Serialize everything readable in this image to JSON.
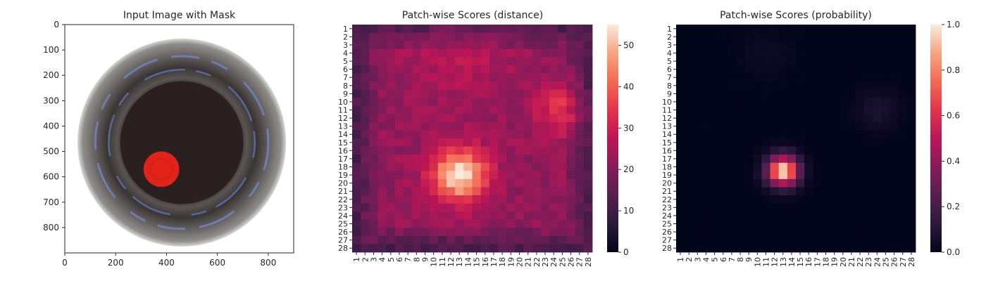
{
  "chart_data": [
    {
      "type": "image",
      "title": "Input Image with Mask",
      "x_ticks": [
        0,
        200,
        400,
        600,
        800
      ],
      "y_ticks": [
        0,
        100,
        200,
        300,
        400,
        500,
        600,
        700,
        800
      ],
      "xlim": [
        0,
        900
      ],
      "ylim": [
        900,
        0
      ],
      "image_width": 900,
      "image_height": 900,
      "dish": {
        "center": [
          460,
          465
        ],
        "outer_radius": 410,
        "inner_radius": 245
      },
      "mask": {
        "center": [
          380,
          570
        ],
        "radius": 70,
        "color": "#e2231a"
      }
    },
    {
      "type": "heatmap",
      "title": "Patch-wise Scores (distance)",
      "rows": 28,
      "cols": 28,
      "x_tick_labels": [
        "1",
        "2",
        "3",
        "4",
        "5",
        "6",
        "7",
        "8",
        "9",
        "10",
        "11",
        "12",
        "13",
        "14",
        "15",
        "16",
        "17",
        "18",
        "19",
        "20",
        "21",
        "22",
        "23",
        "24",
        "25",
        "26",
        "27",
        "28"
      ],
      "y_tick_labels": [
        "1",
        "2",
        "3",
        "4",
        "5",
        "6",
        "7",
        "8",
        "9",
        "10",
        "11",
        "12",
        "13",
        "14",
        "15",
        "16",
        "17",
        "18",
        "19",
        "20",
        "21",
        "22",
        "23",
        "24",
        "25",
        "26",
        "27",
        "28"
      ],
      "colormap": "rocket",
      "vmin": 0,
      "vmax": 55,
      "colorbar_ticks": [
        0,
        10,
        20,
        30,
        40,
        50
      ],
      "colorbar_tick_labels": [
        "0",
        "10",
        "20",
        "30",
        "40",
        "50"
      ],
      "background_level": 22,
      "hotspots": [
        {
          "row": 19,
          "col": 13,
          "peak": 33,
          "sigma": 2.3
        },
        {
          "row": 11,
          "col": 25,
          "peak": 12,
          "sigma": 2.2
        },
        {
          "row": 4,
          "col": 13,
          "peak": 5,
          "sigma": 4.5
        }
      ],
      "edge_dip": 10,
      "peak_value": 55
    },
    {
      "type": "heatmap",
      "title": "Patch-wise Scores (probability)",
      "rows": 28,
      "cols": 28,
      "x_tick_labels": [
        "1",
        "2",
        "3",
        "4",
        "5",
        "6",
        "7",
        "8",
        "9",
        "10",
        "11",
        "12",
        "13",
        "14",
        "15",
        "16",
        "17",
        "18",
        "19",
        "20",
        "21",
        "22",
        "23",
        "24",
        "25",
        "26",
        "27",
        "28"
      ],
      "y_tick_labels": [
        "1",
        "2",
        "3",
        "4",
        "5",
        "6",
        "7",
        "8",
        "9",
        "10",
        "11",
        "12",
        "13",
        "14",
        "15",
        "16",
        "17",
        "18",
        "19",
        "20",
        "21",
        "22",
        "23",
        "24",
        "25",
        "26",
        "27",
        "28"
      ],
      "colormap": "rocket",
      "vmin": 0,
      "vmax": 1,
      "colorbar_ticks": [
        0,
        0.2,
        0.4,
        0.6,
        0.8,
        1.0
      ],
      "colorbar_tick_labels": [
        "0.0",
        "0.2",
        "0.4",
        "0.6",
        "0.8",
        "1.0"
      ],
      "background_level": 0.0,
      "hotspots": [
        {
          "row": 18.5,
          "col": 13,
          "peak": 1.0,
          "sigma": 1.25
        },
        {
          "row": 11,
          "col": 24,
          "peak": 0.08,
          "sigma": 1.6
        },
        {
          "row": 4,
          "col": 11,
          "peak": 0.03,
          "sigma": 2.0
        }
      ],
      "peak_value": 1.0
    }
  ]
}
